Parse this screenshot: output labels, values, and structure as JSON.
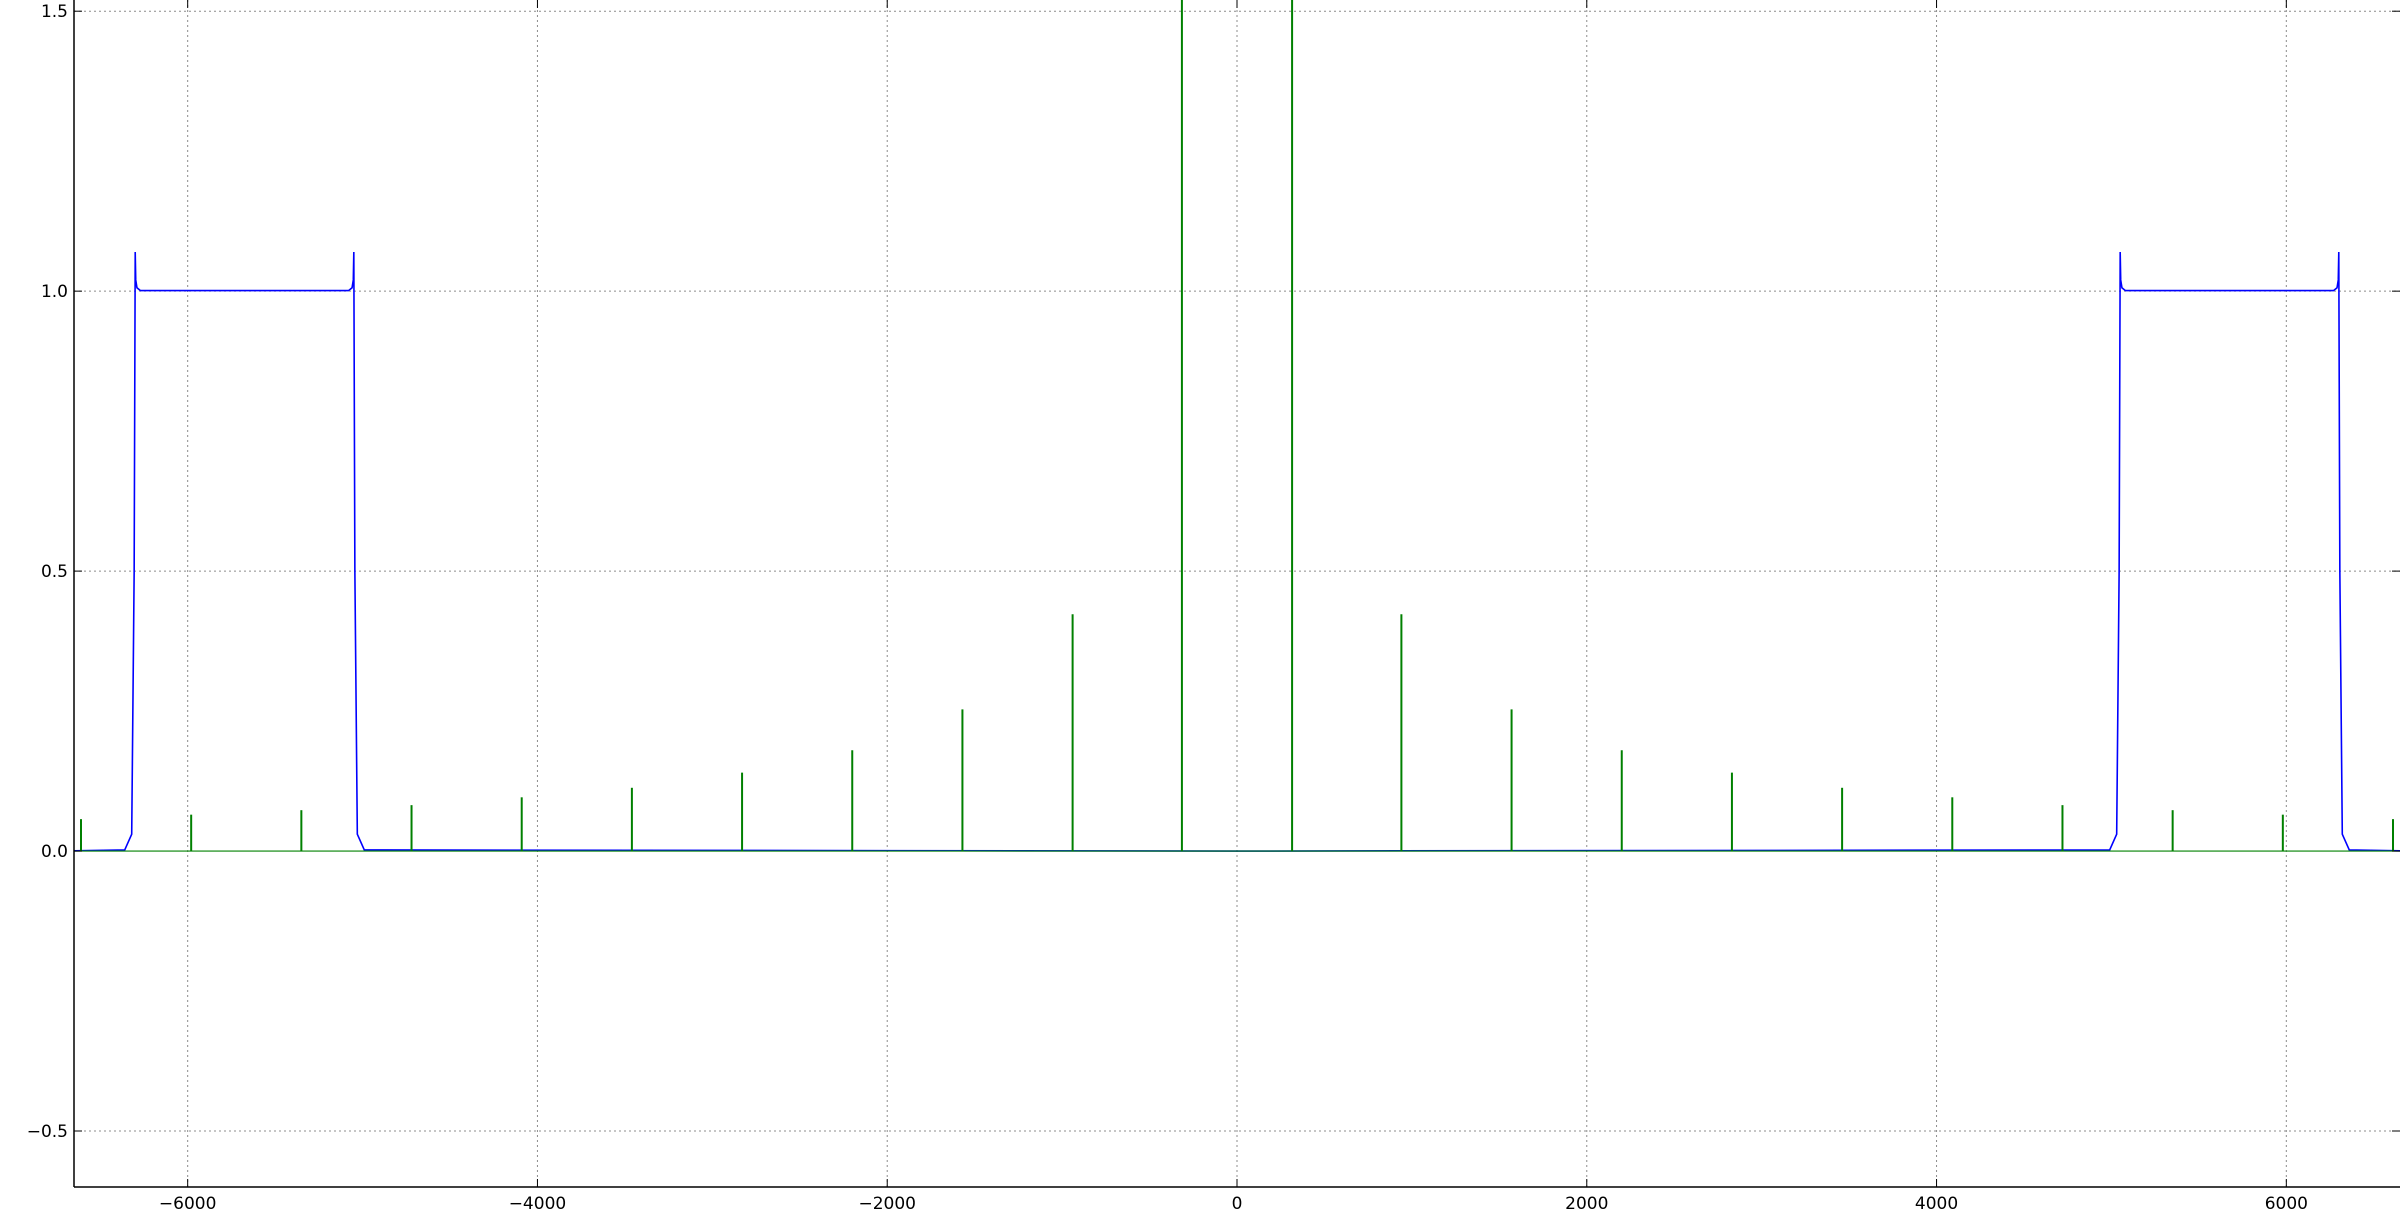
{
  "chart_data": {
    "type": "line",
    "title": "",
    "xlabel": "",
    "ylabel": "",
    "xlim": [
      -6650,
      6650
    ],
    "ylim": [
      -0.6,
      1.52
    ],
    "grid": true,
    "legend": "none",
    "x_ticks": [
      -6000,
      -4000,
      -2000,
      0,
      2000,
      4000,
      6000
    ],
    "x_tick_labels": [
      "−6000",
      "−4000",
      "−2000",
      "0",
      "2000",
      "4000",
      "6000"
    ],
    "y_ticks": [
      -0.5,
      0.0,
      0.5,
      1.0,
      1.5
    ],
    "y_tick_labels": [
      "−0.5",
      "0.0",
      "0.5",
      "1.0",
      "1.5"
    ],
    "series": [
      {
        "color": "#0000ff",
        "kind": "passband",
        "bands": [
          {
            "low": -6300,
            "high": -5050,
            "level": 1.0,
            "overshoot": 1.07
          },
          {
            "low": 5050,
            "high": 6300,
            "level": 1.0,
            "overshoot": 1.07
          }
        ]
      },
      {
        "color": "#008000",
        "kind": "impulses",
        "baseline": 0.0,
        "x": [
          -6610,
          -5980,
          -5350,
          -4720,
          -4090,
          -3460,
          -2830,
          -2200,
          -1570,
          -940,
          -315,
          315,
          940,
          1570,
          2200,
          2830,
          3460,
          4090,
          4720,
          5350,
          5980,
          6610
        ],
        "y": [
          0.057,
          0.065,
          0.073,
          0.082,
          0.096,
          0.113,
          0.14,
          0.18,
          0.253,
          0.423,
          1.6,
          1.6,
          0.423,
          0.253,
          0.18,
          0.14,
          0.113,
          0.096,
          0.082,
          0.073,
          0.065,
          0.057
        ]
      }
    ]
  }
}
